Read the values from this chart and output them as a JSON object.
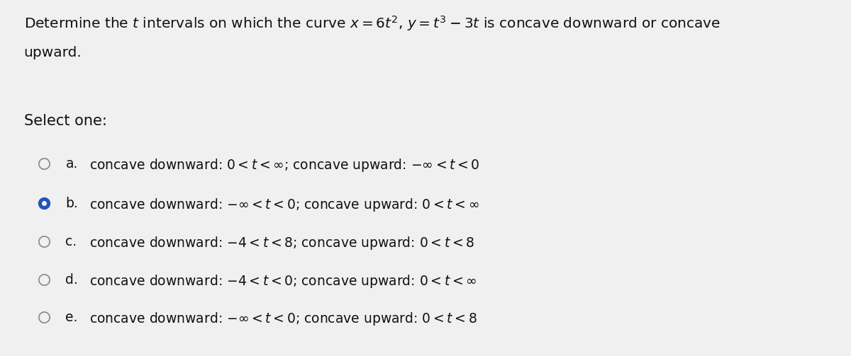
{
  "background_color": "#d8d8d8",
  "inner_bg_color": "#f0f0f0",
  "title_line1": "Determine the $t$ intervals on which the curve $x = 6t^2$, $y = t^3 - 3t$ is concave downward or concave",
  "title_line2": "upward.",
  "select_one": "Select one:",
  "options": [
    {
      "label": "a.",
      "text_parts": [
        "concave downward: $0 < t < \\infty$",
        "; concave upward: $-\\infty < t < 0$"
      ],
      "selected": false
    },
    {
      "label": "b.",
      "text_parts": [
        "concave downward: $-\\infty < t < 0$",
        "; concave upward: $0 < t < \\infty$"
      ],
      "selected": true
    },
    {
      "label": "c.",
      "text_parts": [
        "concave downward: $-4 < t < 8$",
        "; concave upward: $0 < t < 8$"
      ],
      "selected": false
    },
    {
      "label": "d.",
      "text_parts": [
        "concave downward: $-4 < t < 0$",
        "; concave upward: $0 < t < \\infty$"
      ],
      "selected": false
    },
    {
      "label": "e.",
      "text_parts": [
        "concave downward: $-\\infty < t < 0$",
        "; concave upward: $0 < t < 8$"
      ],
      "selected": false
    }
  ],
  "font_size_title": 14.5,
  "font_size_select": 15,
  "font_size_options": 13.5,
  "selected_color": "#2255bb",
  "selected_inner_color": "#4488ee",
  "unselected_edge_color": "#888888",
  "text_color": "#111111"
}
